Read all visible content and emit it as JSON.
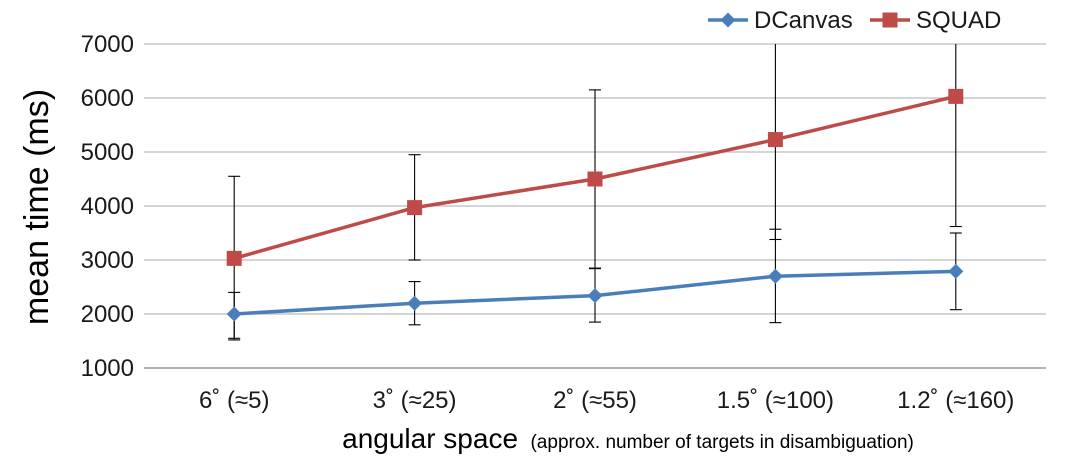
{
  "chart_data": {
    "type": "line",
    "title": "",
    "xlabel": "angular space",
    "xlabel_note": "(approx. number of targets in disambiguation)",
    "ylabel": "mean time (ms)",
    "ylim": [
      1000,
      7000
    ],
    "yticks": [
      1000,
      2000,
      3000,
      4000,
      5000,
      6000,
      7000
    ],
    "grid": true,
    "legend": "top-right",
    "categories": [
      "6˚ (≈5)",
      "3˚ (≈25)",
      "2˚ (≈55)",
      "1.5˚ (≈100)",
      "1.2˚ (≈160)"
    ],
    "series": [
      {
        "name": "DCanvas",
        "color": "#4a7ebb",
        "marker": "diamond",
        "values": [
          2000,
          2200,
          2340,
          2700,
          2790
        ],
        "err_low": [
          1550,
          1800,
          1850,
          1840,
          2080
        ],
        "err_high": [
          2400,
          2600,
          2840,
          3570,
          3500
        ]
      },
      {
        "name": "SQUAD",
        "color": "#be4b48",
        "marker": "square",
        "values": [
          3030,
          3970,
          4500,
          5230,
          6030
        ],
        "err_low": [
          1520,
          3000,
          2850,
          3380,
          3620
        ],
        "err_high": [
          4550,
          4950,
          6150,
          7000,
          7000
        ]
      }
    ]
  }
}
